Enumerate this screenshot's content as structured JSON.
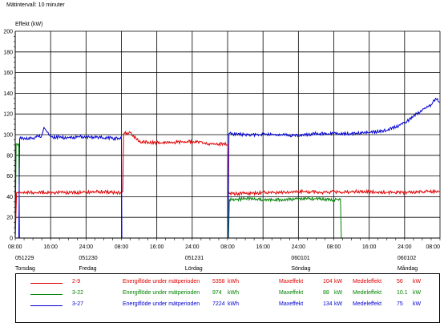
{
  "header": {
    "interval_label": "Mätintervall: 10 minuter"
  },
  "chart_data": {
    "type": "line",
    "ylabel": "Effekt (kW)",
    "ylim": [
      0,
      200
    ],
    "yticks": [
      0,
      20,
      40,
      60,
      80,
      100,
      120,
      140,
      160,
      180,
      200
    ],
    "xlim_hours": [
      0,
      96
    ],
    "xticks": [
      {
        "h": 0,
        "label": "08:00"
      },
      {
        "h": 8,
        "label": "16:00"
      },
      {
        "h": 16,
        "label": "24:00"
      },
      {
        "h": 24,
        "label": "08:00"
      },
      {
        "h": 32,
        "label": "16:00"
      },
      {
        "h": 40,
        "label": "24:00"
      },
      {
        "h": 48,
        "label": "08:00"
      },
      {
        "h": 56,
        "label": "16:00"
      },
      {
        "h": 64,
        "label": "24:00"
      },
      {
        "h": 72,
        "label": "08:00"
      },
      {
        "h": 80,
        "label": "16:00"
      },
      {
        "h": 88,
        "label": "24:00"
      },
      {
        "h": 96,
        "label": "08:00"
      }
    ],
    "date_labels": [
      {
        "h": 0,
        "date": "051229",
        "day": "Torsdag"
      },
      {
        "h": 16,
        "date": "051230",
        "day": "Fredag"
      },
      {
        "h": 40,
        "date": "051231",
        "day": "Lördag"
      },
      {
        "h": 64,
        "date": "060101",
        "day": "Söndag"
      },
      {
        "h": 88,
        "date": "060102",
        "day": "Måndag"
      }
    ],
    "grid": true,
    "series": [
      {
        "name": "2-9",
        "color": "#e00000",
        "points": [
          [
            0,
            0
          ],
          [
            0.3,
            44
          ],
          [
            5,
            44
          ],
          [
            10,
            44
          ],
          [
            15,
            44
          ],
          [
            20,
            45
          ],
          [
            22,
            44
          ],
          [
            24,
            44
          ],
          [
            24.3,
            45
          ],
          [
            24.5,
            101
          ],
          [
            26,
            102
          ],
          [
            28,
            93
          ],
          [
            33,
            92
          ],
          [
            38,
            93
          ],
          [
            42,
            93
          ],
          [
            43,
            91
          ],
          [
            48,
            91
          ],
          [
            48.2,
            45
          ],
          [
            48.4,
            43
          ],
          [
            52,
            43
          ],
          [
            56,
            44
          ],
          [
            60,
            44
          ],
          [
            65,
            45
          ],
          [
            70,
            44
          ],
          [
            72,
            45
          ],
          [
            74,
            44
          ],
          [
            76,
            45
          ],
          [
            80,
            45
          ],
          [
            84,
            44
          ],
          [
            88,
            44
          ],
          [
            92,
            45
          ],
          [
            95,
            45
          ],
          [
            96,
            45
          ]
        ]
      },
      {
        "name": "3-22",
        "color": "#008000",
        "points": [
          [
            0,
            0
          ],
          [
            0.2,
            91
          ],
          [
            0.8,
            91
          ],
          [
            1,
            0
          ],
          [
            48,
            0
          ],
          [
            48.2,
            0
          ],
          [
            48.4,
            37
          ],
          [
            52,
            38
          ],
          [
            56,
            37
          ],
          [
            60,
            37
          ],
          [
            64,
            38
          ],
          [
            68,
            38
          ],
          [
            72,
            37
          ],
          [
            73.5,
            38
          ],
          [
            73.7,
            0
          ],
          [
            96,
            0
          ]
        ]
      },
      {
        "name": "3-27",
        "color": "#0000d0",
        "points": [
          [
            0,
            0
          ],
          [
            0.8,
            0
          ],
          [
            1,
            96
          ],
          [
            4,
            97
          ],
          [
            6,
            99
          ],
          [
            6.5,
            107
          ],
          [
            7,
            104
          ],
          [
            8,
            98
          ],
          [
            12,
            97
          ],
          [
            16,
            98
          ],
          [
            20,
            97
          ],
          [
            24,
            96
          ],
          [
            24.1,
            0
          ],
          [
            48,
            0
          ],
          [
            48.1,
            0
          ],
          [
            48.3,
            101
          ],
          [
            52,
            100
          ],
          [
            56,
            100
          ],
          [
            60,
            100
          ],
          [
            64,
            99
          ],
          [
            68,
            101
          ],
          [
            72,
            101
          ],
          [
            76,
            101
          ],
          [
            80,
            102
          ],
          [
            84,
            104
          ],
          [
            88,
            111
          ],
          [
            90,
            118
          ],
          [
            92,
            124
          ],
          [
            94,
            129
          ],
          [
            95,
            135
          ],
          [
            96,
            131
          ]
        ]
      }
    ]
  },
  "legend": {
    "rows": [
      {
        "name": "2-9",
        "color": "#e00000",
        "flow_label": "Energiflöde under mätperioden",
        "energy_value": "5358",
        "energy_unit": "kWh",
        "max_label": "Maxeffekt",
        "max_value": "104",
        "max_unit": "kW",
        "mean_label": "Medeleffekt",
        "mean_value": "56",
        "mean_unit": "kW"
      },
      {
        "name": "3-22",
        "color": "#008000",
        "flow_label": "Energiflöde under mätperioden",
        "energy_value": "974",
        "energy_unit": "kWh",
        "max_label": "Maxeffekt",
        "max_value": "88",
        "max_unit": "kW",
        "mean_label": "Medeleffekt",
        "mean_value": "10.1",
        "mean_unit": "kW"
      },
      {
        "name": "3-27",
        "color": "#0000d0",
        "flow_label": "Energiflöde under mätperioden",
        "energy_value": "7224",
        "energy_unit": "kWh",
        "max_label": "Maxeffekt",
        "max_value": "134",
        "max_unit": "kW",
        "mean_label": "Medeleffekt",
        "mean_value": "75",
        "mean_unit": "kW"
      }
    ]
  }
}
